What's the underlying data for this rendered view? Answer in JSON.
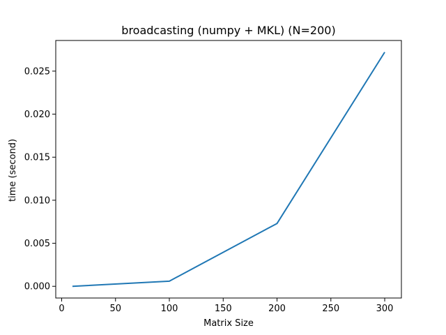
{
  "chart_data": {
    "type": "line",
    "title": "broadcasting (numpy + MKL) (N=200)",
    "xlabel": "Matrix Size",
    "ylabel": "time (second)",
    "xlim": [
      -5.5,
      315.5
    ],
    "ylim": [
      -0.00136,
      0.02856
    ],
    "x_ticks": [
      0,
      50,
      100,
      150,
      200,
      250,
      300
    ],
    "x_tick_labels": [
      "0",
      "50",
      "100",
      "150",
      "200",
      "250",
      "300"
    ],
    "y_ticks": [
      0.0,
      0.005,
      0.01,
      0.015,
      0.02,
      0.025
    ],
    "y_tick_labels": [
      "0.000",
      "0.005",
      "0.010",
      "0.015",
      "0.020",
      "0.025"
    ],
    "grid": false,
    "series": [
      {
        "color": "#1f77b4",
        "x": [
          10,
          100,
          200,
          300
        ],
        "y": [
          0.0,
          0.0006,
          0.0073,
          0.0272
        ]
      }
    ]
  }
}
